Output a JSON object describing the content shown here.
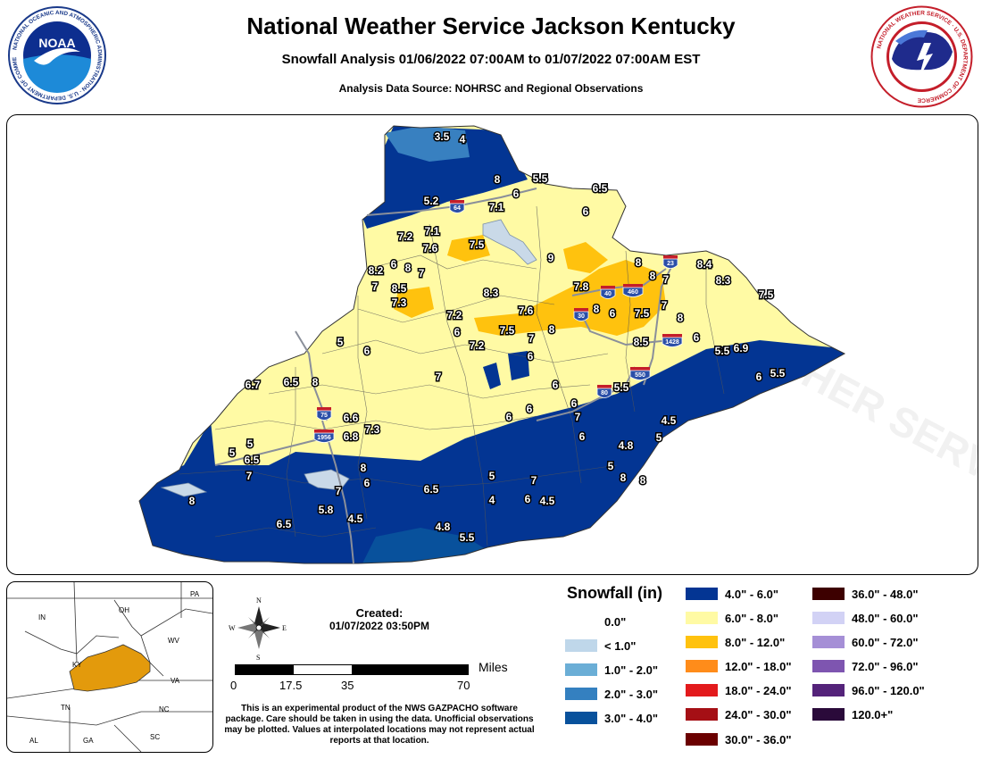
{
  "header": {
    "title": "National Weather Service Jackson Kentucky",
    "subtitle": "Snowfall Analysis 01/06/2022 07:00AM to 01/07/2022 07:00AM EST",
    "source": "Analysis Data Source: NOHRSC and Regional Observations"
  },
  "logos": {
    "noaa_text": "NOAA",
    "noaa_ring": "NATIONAL OCEANIC AND ATMOSPHERIC ADMINISTRATION · U.S. DEPARTMENT OF COMMERCE",
    "nws_ring": "NATIONAL WEATHER SERVICE · U.S. DEPARTMENT OF COMMERCE"
  },
  "map": {
    "watermark": "NATIONAL WEATHER SERVICE",
    "colors": {
      "c4_6": "#033593",
      "c6_8": "#FFFAA4",
      "c8_12": "#FFC20E",
      "c2_3": "#3880C0",
      "water": "#C9D9E8",
      "road": "#8A8F9A"
    },
    "interstates": [
      {
        "label": "64"
      },
      {
        "label": "23"
      },
      {
        "label": "460"
      },
      {
        "label": "40"
      },
      {
        "label": "30"
      },
      {
        "label": "1428"
      },
      {
        "label": "550"
      },
      {
        "label": "80"
      },
      {
        "label": "75"
      },
      {
        "label": "1956"
      }
    ],
    "observations": [
      "3.5",
      "4",
      "8",
      "5.5",
      "6",
      "6.5",
      "5.2",
      "7.1",
      "6",
      "7.2",
      "7.1",
      "7.6",
      "7.5",
      "9",
      "8",
      "8.4",
      "8.2",
      "6",
      "8",
      "7",
      "8.3",
      "7",
      "8.5",
      "7.3",
      "8.3",
      "7.8",
      "8",
      "7",
      "7.5",
      "7.6",
      "7.2",
      "6",
      "8",
      "6",
      "7.5",
      "8",
      "7.2",
      "7.5",
      "7",
      "8",
      "6",
      "8.5",
      "6",
      "6",
      "6.9",
      "7",
      "6",
      "7",
      "6",
      "5",
      "6.7",
      "6.5",
      "8",
      "6",
      "5.5",
      "5.5",
      "6",
      "6",
      "7",
      "4.5",
      "7.3",
      "6.6",
      "6.8",
      "5",
      "6.5",
      "5",
      "7",
      "8",
      "6",
      "8",
      "6.5",
      "5",
      "7",
      "4.8",
      "5",
      "5",
      "8",
      "8",
      "7",
      "5.8",
      "4.5",
      "4",
      "6",
      "4.5",
      "6.5",
      "4.8",
      "5.5",
      "6",
      "5.5",
      "6"
    ]
  },
  "inset": {
    "states": [
      "PA",
      "IN",
      "OH",
      "WV",
      "KY",
      "VA",
      "TN",
      "NC",
      "SC",
      "AL",
      "GA"
    ],
    "highlight_color": "#E39A0C"
  },
  "compass": {
    "n": "N",
    "s": "S",
    "e": "E",
    "w": "W"
  },
  "created": {
    "label": "Created:",
    "value": "01/07/2022 03:50PM"
  },
  "scale": {
    "ticks": [
      "0",
      "17.5",
      "35",
      "70"
    ],
    "unit": "Miles"
  },
  "disclaimer": "This is an experimental product of the NWS GAZPACHO software package. Care should be taken in using the data. Unofficial observations may be plotted. Values at interpolated locations may not represent actual reports at that location.",
  "legend": {
    "title": "Snowfall (in)",
    "items": [
      {
        "label": "0.0\"",
        "color": "#FFFFFF"
      },
      {
        "label": "< 1.0\"",
        "color": "#BFD7EA"
      },
      {
        "label": "1.0\" - 2.0\"",
        "color": "#6BAED6"
      },
      {
        "label": "2.0\" - 3.0\"",
        "color": "#3480C0"
      },
      {
        "label": "3.0\" - 4.0\"",
        "color": "#08519C"
      },
      {
        "label": "4.0\" - 6.0\"",
        "color": "#033593"
      },
      {
        "label": "6.0\" - 8.0\"",
        "color": "#FFFAA4"
      },
      {
        "label": "8.0\" - 12.0\"",
        "color": "#FFC20E"
      },
      {
        "label": "12.0\" - 18.0\"",
        "color": "#FF8C1A"
      },
      {
        "label": "18.0\" - 24.0\"",
        "color": "#E31A1C"
      },
      {
        "label": "24.0\" - 30.0\"",
        "color": "#A50F15"
      },
      {
        "label": "30.0\" - 36.0\"",
        "color": "#6B0000"
      },
      {
        "label": "36.0\" - 48.0\"",
        "color": "#3D0000"
      },
      {
        "label": "48.0\" - 60.0\"",
        "color": "#D2D2F5"
      },
      {
        "label": "60.0\" - 72.0\"",
        "color": "#A58FD6"
      },
      {
        "label": "72.0\" - 96.0\"",
        "color": "#7E55B0"
      },
      {
        "label": "96.0\" - 120.0\"",
        "color": "#54237A"
      },
      {
        "label": "120.0+\"",
        "color": "#2A0A3A"
      }
    ]
  }
}
